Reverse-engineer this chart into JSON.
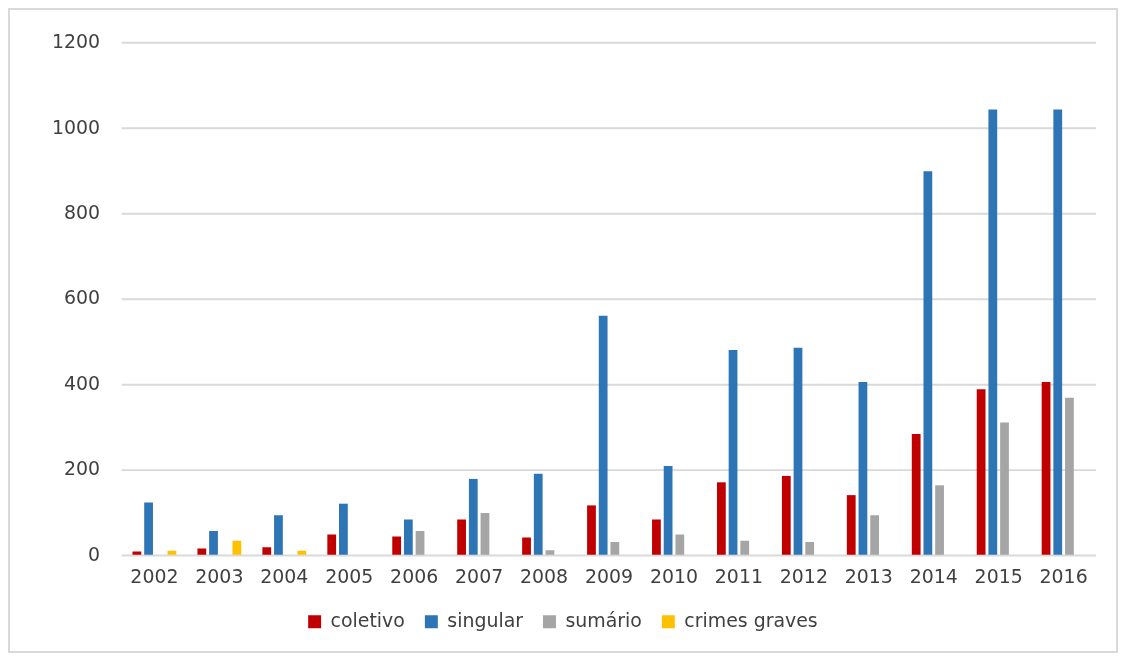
{
  "chart_data": {
    "type": "bar",
    "categories": [
      "2002",
      "2003",
      "2004",
      "2005",
      "2006",
      "2007",
      "2008",
      "2009",
      "2010",
      "2011",
      "2012",
      "2013",
      "2014",
      "2015",
      "2016"
    ],
    "series": [
      {
        "name": "coletivo",
        "color": "#c00000",
        "values": [
          10,
          17,
          20,
          50,
          45,
          85,
          43,
          118,
          85,
          172,
          187,
          142,
          285,
          390,
          407
        ]
      },
      {
        "name": "singular",
        "color": "#2e75b6",
        "values": [
          125,
          58,
          95,
          122,
          85,
          180,
          192,
          562,
          210,
          482,
          487,
          407,
          900,
          1045,
          1045
        ]
      },
      {
        "name": "sumário",
        "color": "#a5a5a5",
        "values": [
          null,
          null,
          null,
          null,
          58,
          100,
          13,
          32,
          50,
          35,
          32,
          95,
          165,
          312,
          370
        ]
      },
      {
        "name": "crimes graves",
        "color": "#ffc000",
        "values": [
          12,
          35,
          12,
          null,
          null,
          null,
          null,
          null,
          null,
          null,
          null,
          null,
          null,
          null,
          null
        ]
      }
    ],
    "ylim": [
      0,
      1200
    ],
    "yticks": [
      0,
      200,
      400,
      600,
      800,
      1000,
      1200
    ],
    "grid": "y",
    "legend": "bottom"
  }
}
